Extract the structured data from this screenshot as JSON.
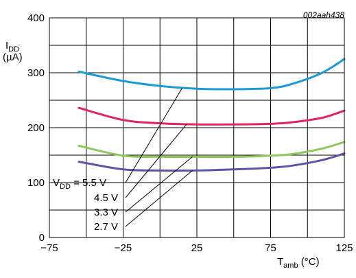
{
  "chart_data": {
    "type": "line",
    "reference": "002aah438",
    "ylabel_main": "I",
    "ylabel_sub": "DD",
    "ylabel_unit": "(µA)",
    "xlabel_main": "T",
    "xlabel_sub": "amb",
    "xlabel_unit": " (°C)",
    "xlim": [
      -75,
      125
    ],
    "ylim": [
      0,
      400
    ],
    "x_ticks": [
      -75,
      -25,
      25,
      75,
      125
    ],
    "x_tick_labels": [
      "−75",
      "−25",
      "25",
      "75",
      "125"
    ],
    "y_ticks": [
      0,
      100,
      200,
      300,
      400
    ],
    "y_tick_labels": [
      "0",
      "100",
      "200",
      "300",
      "400"
    ],
    "x_grid_step": 25,
    "y_grid_step": 50,
    "grid": true,
    "series_label_prefix_main": "V",
    "series_label_prefix_sub": "DD",
    "series_label_prefix_eq": " = ",
    "series": [
      {
        "name": "5.5 V",
        "color": "#1a9ad6",
        "x": [
          -55,
          -25,
          0,
          25,
          50,
          75,
          90,
          110,
          125
        ],
        "values": [
          302,
          285,
          276,
          271,
          270,
          272,
          280,
          300,
          325
        ]
      },
      {
        "name": "4.5 V",
        "color": "#e0245e",
        "x": [
          -55,
          -25,
          0,
          25,
          50,
          75,
          90,
          110,
          125
        ],
        "values": [
          236,
          214,
          208,
          206,
          206,
          207,
          210,
          218,
          231
        ]
      },
      {
        "name": "3.3 V",
        "color": "#8cc85a",
        "x": [
          -55,
          -25,
          0,
          25,
          50,
          75,
          90,
          110,
          125
        ],
        "values": [
          167,
          149,
          147,
          147,
          147,
          149,
          152,
          162,
          174
        ]
      },
      {
        "name": "2.7 V",
        "color": "#5a55a8",
        "x": [
          -55,
          -25,
          0,
          25,
          50,
          75,
          90,
          110,
          125
        ],
        "values": [
          138,
          124,
          122,
          122,
          124,
          127,
          131,
          141,
          153
        ]
      }
    ]
  }
}
